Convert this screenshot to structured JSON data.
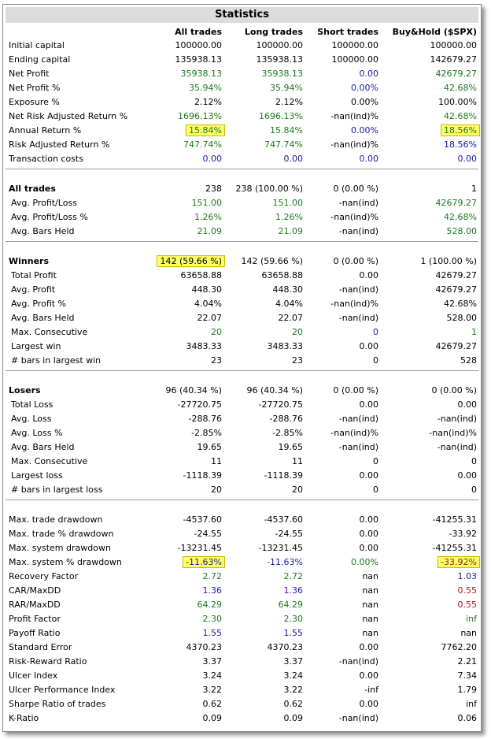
{
  "title": "Statistics",
  "headers": [
    "All trades",
    "Long trades",
    "Short trades",
    "Buy&Hold ($SPX)"
  ],
  "rows": [
    {
      "label": "Initial capital",
      "v": [
        "100000.00",
        "100000.00",
        "100000.00",
        "100000.00"
      ],
      "c": [
        "k",
        "k",
        "k",
        "k"
      ]
    },
    {
      "label": "Ending capital",
      "v": [
        "135938.13",
        "135938.13",
        "100000.00",
        "142679.27"
      ],
      "c": [
        "k",
        "k",
        "k",
        "k"
      ]
    },
    {
      "label": "Net Profit",
      "v": [
        "35938.13",
        "35938.13",
        "0.00",
        "42679.27"
      ],
      "c": [
        "g",
        "g",
        "b",
        "g"
      ]
    },
    {
      "label": "Net Profit %",
      "v": [
        "35.94%",
        "35.94%",
        "0.00%",
        "42.68%"
      ],
      "c": [
        "g",
        "g",
        "b",
        "g"
      ]
    },
    {
      "label": "Exposure %",
      "v": [
        "2.12%",
        "2.12%",
        "0.00%",
        "100.00%"
      ],
      "c": [
        "k",
        "k",
        "k",
        "k"
      ]
    },
    {
      "label": "Net Risk Adjusted Return %",
      "v": [
        "1696.13%",
        "1696.13%",
        "-nan(ind)%",
        "42.68%"
      ],
      "c": [
        "g",
        "g",
        "k",
        "g"
      ]
    },
    {
      "label": "Annual Return %",
      "v": [
        "15.84%",
        "15.84%",
        "0.00%",
        "18.56%"
      ],
      "c": [
        "g",
        "g",
        "b",
        "g"
      ]
    },
    {
      "label": "Risk Adjusted Return %",
      "v": [
        "747.74%",
        "747.74%",
        "-nan(ind)%",
        "18.56%"
      ],
      "c": [
        "g",
        "g",
        "k",
        "b"
      ]
    },
    {
      "label": "Transaction costs",
      "v": [
        "0.00",
        "0.00",
        "0.00",
        "0.00"
      ],
      "c": [
        "b",
        "b",
        "b",
        "b"
      ]
    },
    {
      "label": "All trades",
      "v": [
        "238",
        "238 (100.00 %)",
        "0 (0.00 %)",
        "1"
      ],
      "c": [
        "k",
        "k",
        "k",
        "k"
      ]
    },
    {
      "label": "Avg. Profit/Loss",
      "v": [
        "151.00",
        "151.00",
        "-nan(ind)",
        "42679.27"
      ],
      "c": [
        "g",
        "g",
        "k",
        "g"
      ]
    },
    {
      "label": "Avg. Profit/Loss %",
      "v": [
        "1.26%",
        "1.26%",
        "-nan(ind)%",
        "42.68%"
      ],
      "c": [
        "g",
        "g",
        "k",
        "g"
      ]
    },
    {
      "label": "Avg. Bars Held",
      "v": [
        "21.09",
        "21.09",
        "-nan(ind)",
        "528.00"
      ],
      "c": [
        "g",
        "g",
        "k",
        "g"
      ]
    },
    {
      "label": "Winners",
      "v": [
        "142 (59.66 %)",
        "142 (59.66 %)",
        "0 (0.00 %)",
        "1 (100.00 %)"
      ],
      "c": [
        "k",
        "k",
        "k",
        "k"
      ]
    },
    {
      "label": "Total Profit",
      "v": [
        "63658.88",
        "63658.88",
        "0.00",
        "42679.27"
      ],
      "c": [
        "k",
        "k",
        "k",
        "k"
      ]
    },
    {
      "label": "Avg. Profit",
      "v": [
        "448.30",
        "448.30",
        "-nan(ind)",
        "42679.27"
      ],
      "c": [
        "k",
        "k",
        "k",
        "k"
      ]
    },
    {
      "label": "Avg. Profit %",
      "v": [
        "4.04%",
        "4.04%",
        "-nan(ind)%",
        "42.68%"
      ],
      "c": [
        "k",
        "k",
        "k",
        "k"
      ]
    },
    {
      "label": "Avg. Bars Held",
      "v": [
        "22.07",
        "22.07",
        "-nan(ind)",
        "528.00"
      ],
      "c": [
        "k",
        "k",
        "k",
        "k"
      ]
    },
    {
      "label": "Max. Consecutive",
      "v": [
        "20",
        "20",
        "0",
        "1"
      ],
      "c": [
        "g",
        "g",
        "b",
        "g"
      ]
    },
    {
      "label": "Largest win",
      "v": [
        "3483.33",
        "3483.33",
        "0.00",
        "42679.27"
      ],
      "c": [
        "k",
        "k",
        "k",
        "k"
      ]
    },
    {
      "label": "# bars in largest win",
      "v": [
        "23",
        "23",
        "0",
        "528"
      ],
      "c": [
        "k",
        "k",
        "k",
        "k"
      ]
    },
    {
      "label": "Losers",
      "v": [
        "96 (40.34 %)",
        "96 (40.34 %)",
        "0 (0.00 %)",
        "0 (0.00 %)"
      ],
      "c": [
        "k",
        "k",
        "k",
        "k"
      ]
    },
    {
      "label": "Total Loss",
      "v": [
        "-27720.75",
        "-27720.75",
        "0.00",
        "0.00"
      ],
      "c": [
        "k",
        "k",
        "k",
        "k"
      ]
    },
    {
      "label": "Avg. Loss",
      "v": [
        "-288.76",
        "-288.76",
        "-nan(ind)",
        "-nan(ind)"
      ],
      "c": [
        "k",
        "k",
        "k",
        "k"
      ]
    },
    {
      "label": "Avg. Loss %",
      "v": [
        "-2.85%",
        "-2.85%",
        "-nan(ind)%",
        "-nan(ind)%"
      ],
      "c": [
        "k",
        "k",
        "k",
        "k"
      ]
    },
    {
      "label": "Avg. Bars Held",
      "v": [
        "19.65",
        "19.65",
        "-nan(ind)",
        "-nan(ind)"
      ],
      "c": [
        "k",
        "k",
        "k",
        "k"
      ]
    },
    {
      "label": "Max. Consecutive",
      "v": [
        "11",
        "11",
        "0",
        "0"
      ],
      "c": [
        "k",
        "k",
        "k",
        "k"
      ]
    },
    {
      "label": "Largest loss",
      "v": [
        "-1118.39",
        "-1118.39",
        "0.00",
        "0.00"
      ],
      "c": [
        "k",
        "k",
        "k",
        "k"
      ]
    },
    {
      "label": "# bars in largest loss",
      "v": [
        "20",
        "20",
        "0",
        "0"
      ],
      "c": [
        "k",
        "k",
        "k",
        "k"
      ]
    },
    {
      "label": "Max. trade drawdown",
      "v": [
        "-4537.60",
        "-4537.60",
        "0.00",
        "-41255.31"
      ],
      "c": [
        "k",
        "k",
        "k",
        "k"
      ]
    },
    {
      "label": "Max. trade % drawdown",
      "v": [
        "-24.55",
        "-24.55",
        "0.00",
        "-33.92"
      ],
      "c": [
        "k",
        "k",
        "k",
        "k"
      ]
    },
    {
      "label": "Max. system drawdown",
      "v": [
        "-13231.45",
        "-13231.45",
        "0.00",
        "-41255.31"
      ],
      "c": [
        "k",
        "k",
        "k",
        "k"
      ]
    },
    {
      "label": "Max. system % drawdown",
      "v": [
        "-11.63%",
        "-11.63%",
        "0.00%",
        "-33.92%"
      ],
      "c": [
        "b",
        "b",
        "g",
        "r"
      ]
    },
    {
      "label": "Recovery Factor",
      "v": [
        "2.72",
        "2.72",
        "nan",
        "1.03"
      ],
      "c": [
        "g",
        "g",
        "k",
        "b"
      ]
    },
    {
      "label": "CAR/MaxDD",
      "v": [
        "1.36",
        "1.36",
        "nan",
        "0.55"
      ],
      "c": [
        "b",
        "b",
        "k",
        "r"
      ]
    },
    {
      "label": "RAR/MaxDD",
      "v": [
        "64.29",
        "64.29",
        "nan",
        "0.55"
      ],
      "c": [
        "g",
        "g",
        "k",
        "r"
      ]
    },
    {
      "label": "Profit Factor",
      "v": [
        "2.30",
        "2.30",
        "nan",
        "inf"
      ],
      "c": [
        "g",
        "g",
        "k",
        "g"
      ]
    },
    {
      "label": "Payoff Ratio",
      "v": [
        "1.55",
        "1.55",
        "nan",
        "nan"
      ],
      "c": [
        "b",
        "b",
        "k",
        "k"
      ]
    },
    {
      "label": "Standard Error",
      "v": [
        "4370.23",
        "4370.23",
        "0.00",
        "7762.20"
      ],
      "c": [
        "k",
        "k",
        "k",
        "k"
      ]
    },
    {
      "label": "Risk-Reward Ratio",
      "v": [
        "3.37",
        "3.37",
        "-nan(ind)",
        "2.21"
      ],
      "c": [
        "k",
        "k",
        "k",
        "k"
      ]
    },
    {
      "label": "Ulcer Index",
      "v": [
        "3.24",
        "3.24",
        "0.00",
        "7.34"
      ],
      "c": [
        "k",
        "k",
        "k",
        "k"
      ]
    },
    {
      "label": "Ulcer Performance Index",
      "v": [
        "3.22",
        "3.22",
        "-inf",
        "1.79"
      ],
      "c": [
        "k",
        "k",
        "k",
        "k"
      ]
    },
    {
      "label": "Sharpe Ratio of trades",
      "v": [
        "0.62",
        "0.62",
        "0.00",
        "inf"
      ],
      "c": [
        "k",
        "k",
        "k",
        "k"
      ]
    },
    {
      "label": "K-Ratio",
      "v": [
        "0.09",
        "0.09",
        "-nan(ind)",
        "0.06"
      ],
      "c": [
        "k",
        "k",
        "k",
        "k"
      ]
    }
  ]
}
